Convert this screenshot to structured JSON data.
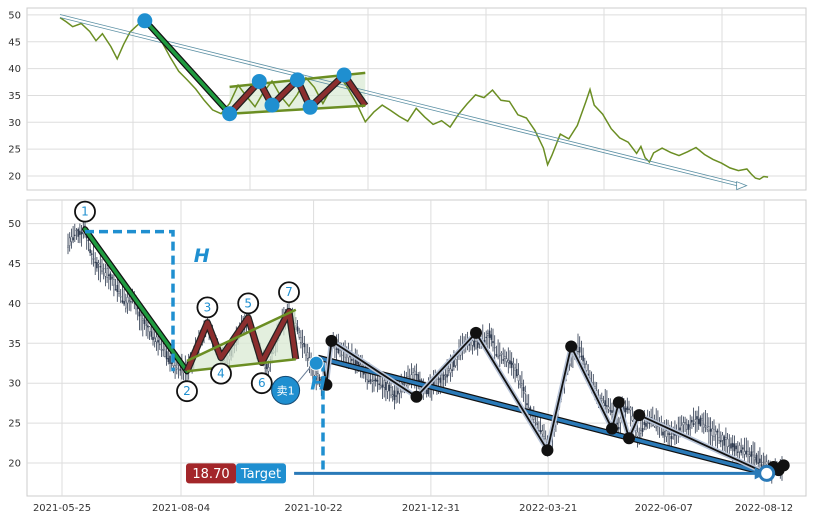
{
  "chart_data": [
    {
      "type": "line",
      "panel": "overview",
      "ylim": [
        17,
        52
      ],
      "yticks": [
        20,
        25,
        30,
        35,
        40,
        45,
        50
      ],
      "grid": true,
      "colors": {
        "price": "#6b8e23",
        "trend": "#5a8fa3",
        "flag": "#6b8e23",
        "zigzag": "#8b2e2e",
        "marker": "#1f8fd0"
      },
      "price_series": [
        [
          0,
          49.5
        ],
        [
          3,
          48.7
        ],
        [
          6,
          47.8
        ],
        [
          10,
          48.4
        ],
        [
          14,
          46.9
        ],
        [
          17,
          45.2
        ],
        [
          20,
          46.5
        ],
        [
          24,
          44.1
        ],
        [
          27,
          41.8
        ],
        [
          30,
          44.5
        ],
        [
          33,
          46.8
        ],
        [
          36,
          47.9
        ],
        [
          40,
          49.3
        ],
        [
          42,
          48.6
        ],
        [
          45,
          47.2
        ],
        [
          48,
          45.0
        ],
        [
          52,
          42.1
        ],
        [
          56,
          39.5
        ],
        [
          60,
          37.9
        ],
        [
          64,
          36.2
        ],
        [
          68,
          34.1
        ],
        [
          72,
          32.3
        ],
        [
          76,
          31.6
        ],
        [
          80,
          33.5
        ],
        [
          84,
          36.9
        ],
        [
          88,
          34.8
        ],
        [
          92,
          32.9
        ],
        [
          96,
          35.6
        ],
        [
          100,
          37.7
        ],
        [
          104,
          34.9
        ],
        [
          108,
          33.0
        ],
        [
          112,
          35.2
        ],
        [
          116,
          38.3
        ],
        [
          120,
          36.5
        ],
        [
          124,
          33.5
        ],
        [
          128,
          36.4
        ],
        [
          132,
          38.6
        ],
        [
          136,
          36.2
        ],
        [
          140,
          33.4
        ],
        [
          144,
          30.1
        ],
        [
          148,
          31.9
        ],
        [
          152,
          33.2
        ],
        [
          156,
          32.2
        ],
        [
          160,
          31.1
        ],
        [
          164,
          30.2
        ],
        [
          168,
          32.6
        ],
        [
          172,
          31.0
        ],
        [
          176,
          29.6
        ],
        [
          180,
          30.3
        ],
        [
          184,
          29.1
        ],
        [
          188,
          31.5
        ],
        [
          192,
          33.4
        ],
        [
          196,
          35.1
        ],
        [
          200,
          34.6
        ],
        [
          204,
          36.0
        ],
        [
          208,
          34.1
        ],
        [
          212,
          33.9
        ],
        [
          216,
          31.4
        ],
        [
          220,
          30.8
        ],
        [
          224,
          28.5
        ],
        [
          228,
          25.2
        ],
        [
          230,
          22.1
        ],
        [
          232,
          23.8
        ],
        [
          236,
          27.8
        ],
        [
          240,
          26.9
        ],
        [
          244,
          29.4
        ],
        [
          248,
          33.8
        ],
        [
          250,
          36.1
        ],
        [
          252,
          33.2
        ],
        [
          256,
          31.5
        ],
        [
          260,
          28.8
        ],
        [
          264,
          27.1
        ],
        [
          268,
          26.3
        ],
        [
          272,
          24.2
        ],
        [
          274,
          25.5
        ],
        [
          276,
          23.4
        ],
        [
          278,
          22.6
        ],
        [
          280,
          24.3
        ],
        [
          284,
          25.2
        ],
        [
          288,
          24.4
        ],
        [
          292,
          23.8
        ],
        [
          296,
          24.5
        ],
        [
          300,
          25.3
        ],
        [
          304,
          24.0
        ],
        [
          308,
          23.1
        ],
        [
          312,
          22.4
        ],
        [
          316,
          21.5
        ],
        [
          320,
          21.0
        ],
        [
          324,
          21.3
        ],
        [
          326,
          20.4
        ],
        [
          328,
          19.6
        ],
        [
          330,
          19.4
        ],
        [
          332,
          19.9
        ],
        [
          334,
          19.8
        ]
      ],
      "trend_line": [
        [
          0,
          49.8
        ],
        [
          322,
          18.2
        ]
      ],
      "drop_leg": [
        [
          40,
          49.0
        ],
        [
          80,
          31.6
        ]
      ],
      "flag_upper": [
        [
          80,
          36.6
        ],
        [
          144,
          39.2
        ]
      ],
      "flag_lower": [
        [
          80,
          31.6
        ],
        [
          144,
          33.1
        ]
      ],
      "zigzag": [
        [
          80,
          31.6
        ],
        [
          94,
          37.6
        ],
        [
          100,
          33.2
        ],
        [
          112,
          37.9
        ],
        [
          118,
          32.8
        ],
        [
          134,
          38.8
        ],
        [
          144,
          33.1
        ]
      ],
      "markers": [
        [
          40,
          48.9
        ],
        [
          80,
          31.6
        ],
        [
          94,
          37.6
        ],
        [
          100,
          33.2
        ],
        [
          112,
          37.9
        ],
        [
          118,
          32.8
        ],
        [
          134,
          38.8
        ]
      ]
    },
    {
      "type": "candlestick",
      "panel": "detail",
      "ylim": [
        16,
        53
      ],
      "yticks": [
        20,
        25,
        30,
        35,
        40,
        45,
        50
      ],
      "x_tick_labels": [
        "2021-05-25",
        "2021-08-04",
        "2021-10-22",
        "2021-12-31",
        "2022-03-21",
        "2022-06-07",
        "2022-08-12"
      ],
      "x_tick_positions": [
        0,
        70,
        148,
        217,
        286,
        354,
        413
      ],
      "grid": true,
      "colors": {
        "candle": "#2e3a4f",
        "drop": "#1f9a3f",
        "flag": "#6b8e23",
        "zigzag": "#8b2e2e",
        "measure": "#1f8fd0",
        "target_label": "#a3262a",
        "target_box": "#1f8fd0",
        "black_path": "#111111",
        "blue_band": "#2a7ab8"
      },
      "price_path": [
        [
          0,
          47.5
        ],
        [
          4,
          48.5
        ],
        [
          8,
          49.0
        ],
        [
          10,
          49.3
        ],
        [
          14,
          46.0
        ],
        [
          18,
          44.5
        ],
        [
          22,
          44.0
        ],
        [
          26,
          43.0
        ],
        [
          30,
          41.5
        ],
        [
          34,
          40.0
        ],
        [
          38,
          41.0
        ],
        [
          42,
          38.5
        ],
        [
          46,
          37.0
        ],
        [
          50,
          36.0
        ],
        [
          54,
          35.0
        ],
        [
          58,
          33.5
        ],
        [
          62,
          32.5
        ],
        [
          66,
          32.0
        ],
        [
          70,
          31.5
        ],
        [
          74,
          33.5
        ],
        [
          78,
          35.5
        ],
        [
          82,
          37.5
        ],
        [
          86,
          35.0
        ],
        [
          90,
          33.5
        ],
        [
          94,
          32.5
        ],
        [
          98,
          35.0
        ],
        [
          102,
          37.0
        ],
        [
          106,
          38.0
        ],
        [
          110,
          35.5
        ],
        [
          114,
          33.0
        ],
        [
          118,
          32.0
        ],
        [
          122,
          35.0
        ],
        [
          126,
          37.5
        ],
        [
          130,
          39.0
        ],
        [
          134,
          37.5
        ],
        [
          138,
          35.0
        ],
        [
          142,
          33.0
        ],
        [
          146,
          31.0
        ],
        [
          150,
          29.8
        ],
        [
          154,
          33.0
        ],
        [
          156,
          35.3
        ],
        [
          160,
          34.0
        ],
        [
          166,
          33.5
        ],
        [
          172,
          32.0
        ],
        [
          178,
          30.5
        ],
        [
          184,
          30.0
        ],
        [
          188,
          29.5
        ],
        [
          192,
          28.5
        ],
        [
          196,
          29.5
        ],
        [
          200,
          30.5
        ],
        [
          204,
          31.0
        ],
        [
          208,
          30.0
        ],
        [
          212,
          29.0
        ],
        [
          216,
          30.0
        ],
        [
          220,
          30.5
        ],
        [
          224,
          31.5
        ],
        [
          228,
          32.8
        ],
        [
          232,
          34.5
        ],
        [
          236,
          35.0
        ],
        [
          240,
          34.8
        ],
        [
          244,
          35.5
        ],
        [
          248,
          36.0
        ],
        [
          252,
          34.0
        ],
        [
          256,
          33.0
        ],
        [
          260,
          32.5
        ],
        [
          264,
          31.5
        ],
        [
          268,
          29.0
        ],
        [
          272,
          26.5
        ],
        [
          276,
          25.0
        ],
        [
          280,
          23.5
        ],
        [
          282,
          21.6
        ],
        [
          284,
          22.5
        ],
        [
          288,
          26.5
        ],
        [
          292,
          30.5
        ],
        [
          296,
          33.5
        ],
        [
          300,
          34.5
        ],
        [
          304,
          32.5
        ],
        [
          308,
          30.0
        ],
        [
          312,
          28.0
        ],
        [
          316,
          27.5
        ],
        [
          320,
          26.5
        ],
        [
          324,
          24.5
        ],
        [
          326,
          26.5
        ],
        [
          330,
          27.0
        ],
        [
          334,
          24.5
        ],
        [
          336,
          23.0
        ],
        [
          338,
          24.5
        ],
        [
          342,
          25.5
        ],
        [
          346,
          25.0
        ],
        [
          350,
          24.0
        ],
        [
          354,
          23.5
        ],
        [
          358,
          24.0
        ],
        [
          362,
          24.5
        ],
        [
          366,
          24.8
        ],
        [
          370,
          25.5
        ],
        [
          374,
          25.0
        ],
        [
          378,
          24.0
        ],
        [
          382,
          23.5
        ],
        [
          386,
          22.8
        ],
        [
          390,
          22.2
        ],
        [
          394,
          21.8
        ],
        [
          398,
          21.5
        ],
        [
          402,
          21.0
        ],
        [
          406,
          20.5
        ],
        [
          410,
          19.8
        ],
        [
          413,
          19.2
        ],
        [
          416,
          19.4
        ],
        [
          420,
          19.6
        ]
      ],
      "drop_leg": [
        [
          10,
          49.3
        ],
        [
          70,
          31.5
        ]
      ],
      "flag_upper": [
        [
          70,
          32.8
        ],
        [
          134,
          39.2
        ]
      ],
      "flag_lower": [
        [
          70,
          31.5
        ],
        [
          134,
          33.0
        ]
      ],
      "zigzag": [
        [
          70,
          31.5
        ],
        [
          82,
          37.6
        ],
        [
          90,
          33.2
        ],
        [
          106,
          38.2
        ],
        [
          114,
          32.6
        ],
        [
          130,
          39.0
        ],
        [
          134,
          33.0
        ]
      ],
      "numbered_points": [
        {
          "label": "1",
          "x": 10,
          "y": 49.3,
          "lx": 10,
          "ly": 51.5
        },
        {
          "label": "2",
          "x": 70,
          "y": 31.5,
          "lx": 70,
          "ly": 29.0
        },
        {
          "label": "3",
          "x": 82,
          "y": 37.6,
          "lx": 82,
          "ly": 39.5
        },
        {
          "label": "4",
          "x": 90,
          "y": 33.2,
          "lx": 90,
          "ly": 31.2
        },
        {
          "label": "5",
          "x": 106,
          "y": 38.2,
          "lx": 106,
          "ly": 40.0
        },
        {
          "label": "6",
          "x": 114,
          "y": 32.6,
          "lx": 114,
          "ly": 30.0
        },
        {
          "label": "7",
          "x": 130,
          "y": 39.0,
          "lx": 130,
          "ly": 41.4
        }
      ],
      "measure_h": {
        "start_x": 10,
        "top": 49.0,
        "bottom": 31.5,
        "label": "H",
        "label_x": 74,
        "label_y": 45.2
      },
      "measure_h2": {
        "x": 150,
        "top": 32.6,
        "bottom": 18.7,
        "label": "H",
        "label_x": 146,
        "label_y": 29.2
      },
      "sell_marker": {
        "label": "卖1",
        "x": 146,
        "y": 32.5,
        "bx": 128,
        "by": 29.1
      },
      "projection_arrow": {
        "from": [
          133,
          18.7
        ],
        "to": [
          411,
          18.7
        ]
      },
      "target": {
        "price": "18.70",
        "label": "Target",
        "x": 72,
        "y": 18.7
      },
      "black_path": [
        [
          150,
          32.6
        ],
        [
          152,
          29.8
        ],
        [
          155,
          35.3
        ],
        [
          205,
          28.3
        ],
        [
          240,
          36.3
        ],
        [
          282,
          21.6
        ],
        [
          296,
          34.6
        ],
        [
          320,
          24.3
        ],
        [
          324,
          27.6
        ],
        [
          330,
          23.1
        ],
        [
          336,
          26.0
        ],
        [
          411,
          18.7
        ]
      ],
      "black_dots": [
        [
          152,
          29.8
        ],
        [
          155,
          35.3
        ],
        [
          205,
          28.3
        ],
        [
          240,
          36.3
        ],
        [
          282,
          21.6
        ],
        [
          296,
          34.6
        ],
        [
          320,
          24.3
        ],
        [
          324,
          27.6
        ],
        [
          330,
          23.1
        ],
        [
          336,
          26.0
        ],
        [
          415,
          19.5
        ],
        [
          418,
          19.1
        ],
        [
          421,
          19.7
        ]
      ],
      "blue_band": [
        [
          147,
          33.2
        ],
        [
          411,
          18.7
        ]
      ],
      "end_marker": [
        411,
        18.7
      ]
    }
  ]
}
